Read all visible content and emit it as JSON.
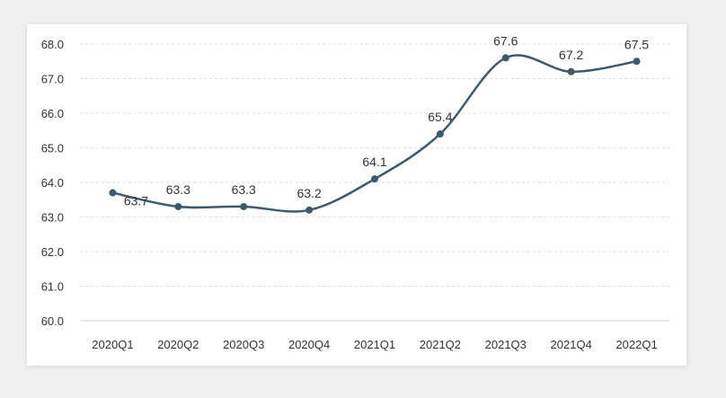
{
  "chart_data": {
    "type": "line",
    "categories": [
      "2020Q1",
      "2020Q2",
      "2020Q3",
      "2020Q4",
      "2021Q1",
      "2021Q2",
      "2021Q3",
      "2021Q4",
      "2022Q1"
    ],
    "series": [
      {
        "values": [
          63.7,
          63.3,
          63.3,
          63.2,
          64.1,
          65.4,
          67.6,
          67.2,
          67.5
        ]
      }
    ],
    "data_labels": [
      "63.7",
      "63.3",
      "63.3",
      "63.2",
      "64.1",
      "65.4",
      "67.6",
      "67.2",
      "67.5"
    ],
    "ylim": [
      60.0,
      68.0
    ],
    "y_ticks": [
      "60.0",
      "61.0",
      "62.0",
      "63.0",
      "64.0",
      "65.0",
      "66.0",
      "67.0",
      "68.0"
    ],
    "grid": true,
    "colors": {
      "line": "#3d5a6c",
      "grid": "#dddddd",
      "axis": "#cccccc"
    }
  }
}
